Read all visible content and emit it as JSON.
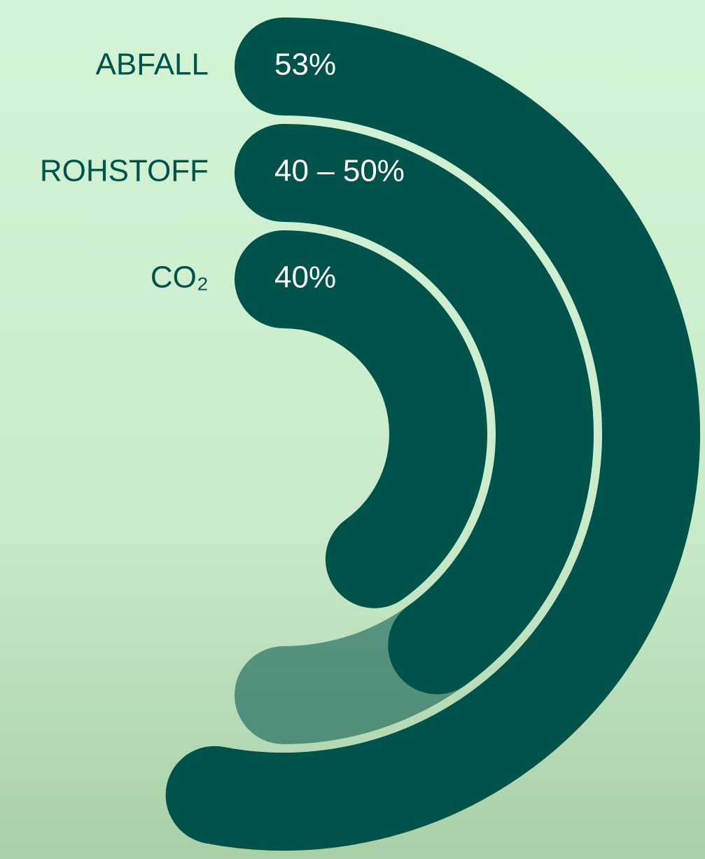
{
  "chart_data": {
    "type": "radial-bar",
    "categories": [
      "ABFALL",
      "ROHSTOFF",
      "CO₂"
    ],
    "values": [
      53,
      50,
      40
    ],
    "lows": [
      null,
      40,
      null
    ],
    "value_labels": [
      "53%",
      "40 – 50%",
      "40%"
    ],
    "color": "#00524b"
  }
}
